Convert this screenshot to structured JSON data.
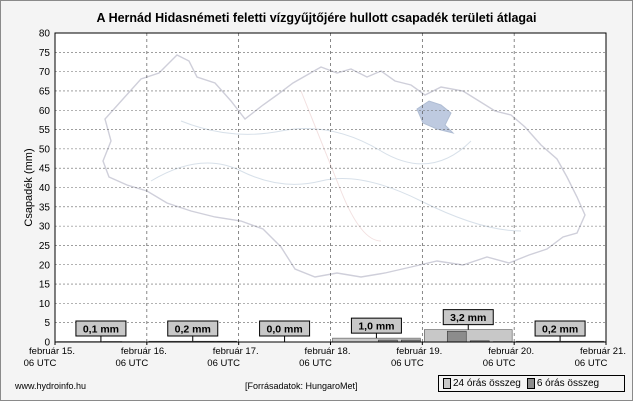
{
  "chart_data": {
    "type": "bar",
    "title": "A Hernád Hidasnémeti feletti vízgyűjtőjére hullott csapadék területi átlagai",
    "ylabel": "Csapadék (mm)",
    "ylim": [
      0,
      80
    ],
    "yticks": [
      0,
      5,
      10,
      15,
      20,
      25,
      30,
      35,
      40,
      45,
      50,
      55,
      60,
      65,
      70,
      75,
      80
    ],
    "grid": true,
    "x_ticks": [
      {
        "date": "február 15.",
        "time": "06 UTC"
      },
      {
        "date": "február 16.",
        "time": "06 UTC"
      },
      {
        "date": "február 17.",
        "time": "06 UTC"
      },
      {
        "date": "február 18.",
        "time": "06 UTC"
      },
      {
        "date": "február 19.",
        "time": "06 UTC"
      },
      {
        "date": "február 20.",
        "time": "06 UTC"
      },
      {
        "date": "február 21.",
        "time": "06 UTC"
      }
    ],
    "daily_totals": [
      "0,1 mm",
      "0,2 mm",
      "0,0 mm",
      "1,0 mm",
      "3,2 mm",
      "0,2 mm"
    ],
    "series": [
      {
        "name": "24 órás összeg",
        "color": "#c8c8c8",
        "values": [
          0.1,
          0.2,
          0.0,
          1.0,
          3.2,
          0.2
        ]
      },
      {
        "name": "6 órás összeg",
        "color": "#8c8c8c",
        "values": [
          0,
          0,
          0.1,
          0,
          0,
          0,
          0.1,
          0.1,
          0,
          0,
          0,
          0,
          0,
          0,
          0.5,
          0.5,
          0,
          2.8,
          0.3,
          0.1,
          0,
          0.1,
          0.1,
          0
        ]
      }
    ],
    "legend_position": "bottom-right",
    "source_site": "www.hydroinfo.hu",
    "source_credit": "[Forrásadatok: HungaroMet]"
  }
}
